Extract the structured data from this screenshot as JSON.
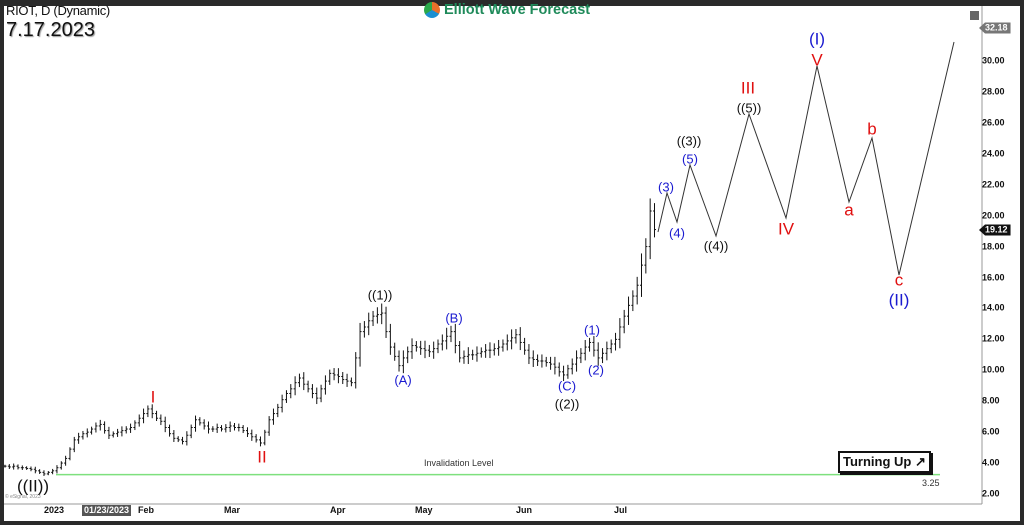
{
  "header": {
    "symbol": "RIOT, D (Dynamic)",
    "date": "7.17.2023",
    "brand": "Elliott Wave Forecast",
    "copyright": "© eSignal, 2023"
  },
  "colors": {
    "bars": "#111111",
    "projection": "#333333",
    "invalidation": "#7ee07e",
    "wave_red": "#e01010",
    "wave_blue": "#1a1ad0",
    "wave_black": "#111111"
  },
  "annotations": {
    "invalidation": "Invalidation Level",
    "invalidation_value": "3.25",
    "turning": "Turning Up",
    "turning_icon": "arrow-up-right-icon"
  },
  "waves": {
    "I": "I",
    "II": "II",
    "IIp": "((II))",
    "w1": "((1))",
    "A": "(A)",
    "B": "(B)",
    "C": "(C)",
    "w2": "((2))",
    "s1": "(1)",
    "s2": "(2)",
    "s3": "(3)",
    "s4": "(4)",
    "s5": "(5)",
    "w3": "((3))",
    "w4": "((4))",
    "III": "III",
    "w5": "((5))",
    "IV": "IV",
    "Ip": "(I)",
    "V": "V",
    "a": "a",
    "b": "b",
    "c": "c",
    "IIpp": "(II)"
  },
  "chart_data": {
    "type": "ohlc-bar",
    "title": "RIOT, D (Dynamic)",
    "ylim": [
      1,
      32.5
    ],
    "yticks": [
      "2.00",
      "4.00",
      "6.00",
      "8.00",
      "10.00",
      "12.00",
      "14.00",
      "16.00",
      "18.00",
      "20.00",
      "22.00",
      "24.00",
      "26.00",
      "28.00",
      "30.00"
    ],
    "last_price": "19.12",
    "high_marker": "32.18",
    "xticks": [
      "2023",
      "Feb",
      "Mar",
      "Apr",
      "May",
      "Jun",
      "Jul"
    ],
    "cursor_date": "01/23/2023",
    "invalidation_level": 3.25,
    "grid": false,
    "closes": [
      3.8,
      3.75,
      3.8,
      3.7,
      3.7,
      3.65,
      3.6,
      3.5,
      3.4,
      3.3,
      3.4,
      3.5,
      3.7,
      4.0,
      4.3,
      4.9,
      5.5,
      5.7,
      5.9,
      6.0,
      6.2,
      6.4,
      6.5,
      6.1,
      5.8,
      5.9,
      6.0,
      6.1,
      6.2,
      6.3,
      6.6,
      6.9,
      7.2,
      7.5,
      7.2,
      6.9,
      6.7,
      6.3,
      5.9,
      5.6,
      5.5,
      5.4,
      5.8,
      6.3,
      6.8,
      6.6,
      6.4,
      6.2,
      6.2,
      6.3,
      6.2,
      6.3,
      6.4,
      6.3,
      6.3,
      6.1,
      5.9,
      5.7,
      5.5,
      5.3,
      6.0,
      6.8,
      7.2,
      7.6,
      8.1,
      8.5,
      8.8,
      9.2,
      9.5,
      9.1,
      8.8,
      8.5,
      8.2,
      8.8,
      9.3,
      9.8,
      9.7,
      9.6,
      9.4,
      9.3,
      9.2,
      10.8,
      12.5,
      12.8,
      13.2,
      13.5,
      13.6,
      13.7,
      12.5,
      11.5,
      10.9,
      10.3,
      10.8,
      11.2,
      11.6,
      11.5,
      11.4,
      11.3,
      11.2,
      11.4,
      11.7,
      11.9,
      12.2,
      12.5,
      11.6,
      10.8,
      10.9,
      11.0,
      11.0,
      11.1,
      11.2,
      11.3,
      11.3,
      11.4,
      11.5,
      11.7,
      11.9,
      12.1,
      12.3,
      11.8,
      11.3,
      10.8,
      10.7,
      10.6,
      10.6,
      10.5,
      10.4,
      10.2,
      9.9,
      9.7,
      10.1,
      10.4,
      10.8,
      11.1,
      11.5,
      11.8,
      11.3,
      10.8,
      11.1,
      11.4,
      11.7,
      12.0,
      12.8,
      13.5,
      14.2,
      14.8,
      15.5,
      16.8,
      18.0,
      20.3,
      19.1
    ]
  }
}
